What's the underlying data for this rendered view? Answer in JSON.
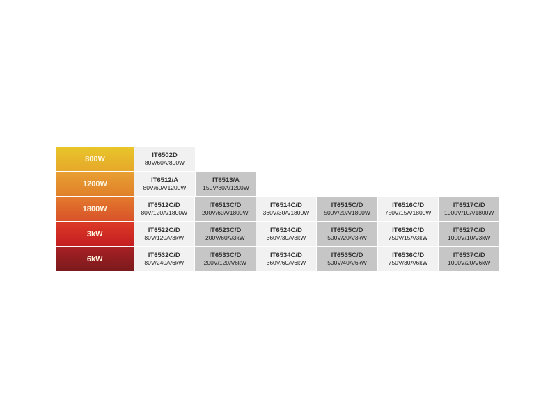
{
  "rows": [
    {
      "power": "800W",
      "colors": [
        "#e9c62a",
        "#e5a82a"
      ],
      "models": [
        {
          "name": "IT6502D",
          "spec": "80V/60A/800W"
        }
      ]
    },
    {
      "power": "1200W",
      "colors": [
        "#e8a032",
        "#e0802a"
      ],
      "models": [
        {
          "name": "IT6512/A",
          "spec": "80V/60A/1200W"
        },
        {
          "name": "IT6513/A",
          "spec": "150V/30A/1200W"
        }
      ]
    },
    {
      "power": "1800W",
      "colors": [
        "#e47a2c",
        "#d8522a"
      ],
      "models": [
        {
          "name": "IT6512C/D",
          "spec": "80V/120A/1800W"
        },
        {
          "name": "IT6513C/D",
          "spec": "200V/60A/1800W"
        },
        {
          "name": "IT6514C/D",
          "spec": "360V/30A/1800W"
        },
        {
          "name": "IT6515C/D",
          "spec": "500V/20A/1800W"
        },
        {
          "name": "IT6516C/D",
          "spec": "750V/15A/1800W"
        },
        {
          "name": "IT6517C/D",
          "spec": "1000V/10A/1800W"
        }
      ]
    },
    {
      "power": "3kW",
      "colors": [
        "#dc3a26",
        "#c41e22"
      ],
      "models": [
        {
          "name": "IT6522C/D",
          "spec": "80V/120A/3kW"
        },
        {
          "name": "IT6523C/D",
          "spec": "200V/60A/3kW"
        },
        {
          "name": "IT6524C/D",
          "spec": "360V/30A/3kW"
        },
        {
          "name": "IT6525C/D",
          "spec": "500V/20A/3kW"
        },
        {
          "name": "IT6526C/D",
          "spec": "750V/15A/3kW"
        },
        {
          "name": "IT6527C/D",
          "spec": "1000V/10A/3kW"
        }
      ]
    },
    {
      "power": "6kW",
      "colors": [
        "#a82024",
        "#7a1a1c"
      ],
      "models": [
        {
          "name": "IT6532C/D",
          "spec": "80V/240A/6kW"
        },
        {
          "name": "IT6533C/D",
          "spec": "200V/120A/6kW"
        },
        {
          "name": "IT6534C/D",
          "spec": "360V/60A/6kW"
        },
        {
          "name": "IT6535C/D",
          "spec": "500V/40A/6kW"
        },
        {
          "name": "IT6536C/D",
          "spec": "750V/30A/6kW"
        },
        {
          "name": "IT6537C/D",
          "spec": "1000V/20A/6kW"
        }
      ]
    }
  ]
}
